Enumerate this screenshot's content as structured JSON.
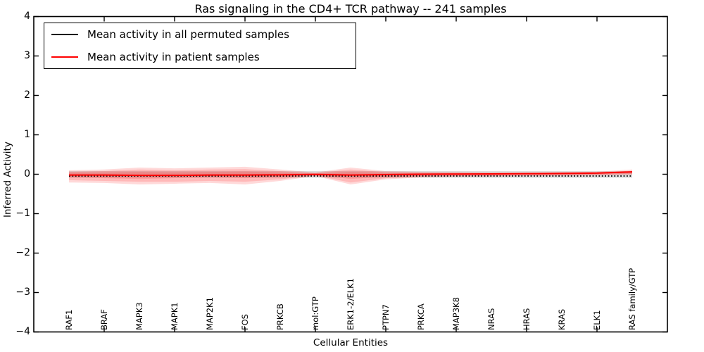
{
  "chart_data": {
    "type": "line",
    "title": "Ras signaling in the CD4+ TCR pathway -- 241 samples",
    "xlabel": "Cellular Entities",
    "ylabel": "Inferred Activity",
    "ylim": [
      -4,
      4
    ],
    "xlim": [
      0,
      18
    ],
    "grid": false,
    "legend_position": "upper left",
    "categories": [
      "RAF1",
      "BRAF",
      "MAPK3",
      "MAPK1",
      "MAP2K1",
      "FOS",
      "PRKCB",
      "mol:GTP",
      "ERK1-2/ELK1",
      "PTPN7",
      "PRKCA",
      "MAP3K8",
      "NRAS",
      "HRAS",
      "KRAS",
      "ELK1",
      "RAS family/GTP"
    ],
    "x_positions": [
      1,
      2,
      3,
      4,
      5,
      6,
      7,
      8,
      9,
      10,
      11,
      12,
      13,
      14,
      15,
      16,
      17
    ],
    "yticks": [
      {
        "value": 4,
        "label": "4"
      },
      {
        "value": 3,
        "label": "3"
      },
      {
        "value": 2,
        "label": "2"
      },
      {
        "value": 1,
        "label": "1"
      },
      {
        "value": 0,
        "label": "0"
      },
      {
        "value": -1,
        "label": "−1"
      },
      {
        "value": -2,
        "label": "−2"
      },
      {
        "value": -3,
        "label": "−3"
      },
      {
        "value": -4,
        "label": "−4"
      }
    ],
    "xtick_mark_positions": [
      2,
      4,
      6,
      8,
      10,
      12,
      14,
      16
    ],
    "legend": {
      "items": [
        {
          "label": "Mean activity in all permuted samples",
          "color": "#000000"
        },
        {
          "label": "Mean activity in patient samples",
          "color": "#ff0000"
        }
      ]
    },
    "series": [
      {
        "name": "Mean activity in all permuted samples",
        "color": "#000000",
        "style": "dotted",
        "values": [
          -0.045,
          -0.045,
          -0.045,
          -0.045,
          -0.045,
          -0.045,
          -0.045,
          -0.045,
          -0.045,
          -0.045,
          -0.045,
          -0.045,
          -0.045,
          -0.045,
          -0.045,
          -0.045,
          -0.045
        ]
      },
      {
        "name": "Mean activity in patient samples",
        "color": "#ff0000",
        "style": "solid",
        "values": [
          -0.02,
          -0.02,
          -0.03,
          -0.03,
          -0.02,
          -0.02,
          -0.015,
          -0.005,
          -0.02,
          -0.01,
          0.0,
          0.005,
          0.01,
          0.015,
          0.02,
          0.03,
          0.06
        ]
      }
    ],
    "bands": {
      "permuted": {
        "color": "#999999",
        "alpha": 0.32,
        "top": 0.08,
        "bottom": -0.09
      },
      "patient": {
        "color": "#ff0000",
        "layer_alpha": 0.15,
        "outer": {
          "top": [
            0.1,
            0.12,
            0.17,
            0.15,
            0.17,
            0.19,
            0.12,
            0.045,
            0.17,
            0.08,
            0.06,
            0.055,
            0.045,
            0.045,
            0.055,
            0.065,
            0.12
          ],
          "bottom": [
            -0.21,
            -0.22,
            -0.26,
            -0.24,
            -0.22,
            -0.26,
            -0.17,
            -0.045,
            -0.26,
            -0.13,
            -0.08,
            -0.06,
            -0.055,
            -0.045,
            -0.04,
            -0.03,
            -0.01
          ]
        },
        "middle": {
          "top": [
            0.06,
            0.08,
            0.12,
            0.1,
            0.12,
            0.13,
            0.08,
            0.03,
            0.12,
            0.055,
            0.045,
            0.04,
            0.035,
            0.03,
            0.04,
            0.05,
            0.09
          ],
          "bottom": [
            -0.15,
            -0.17,
            -0.19,
            -0.19,
            -0.17,
            -0.19,
            -0.13,
            -0.03,
            -0.21,
            -0.1,
            -0.06,
            -0.045,
            -0.04,
            -0.03,
            -0.025,
            -0.02,
            0.0
          ]
        },
        "inner": {
          "top": [
            0.04,
            0.045,
            0.06,
            0.05,
            0.06,
            0.07,
            0.045,
            0.02,
            0.06,
            0.036,
            0.027,
            0.027,
            0.027,
            0.02,
            0.03,
            0.035,
            0.07
          ],
          "bottom": [
            -0.08,
            -0.1,
            -0.12,
            -0.1,
            -0.08,
            -0.1,
            -0.08,
            -0.02,
            -0.12,
            -0.065,
            -0.04,
            -0.027,
            -0.027,
            -0.02,
            -0.015,
            -0.01,
            0.02
          ]
        }
      }
    }
  }
}
